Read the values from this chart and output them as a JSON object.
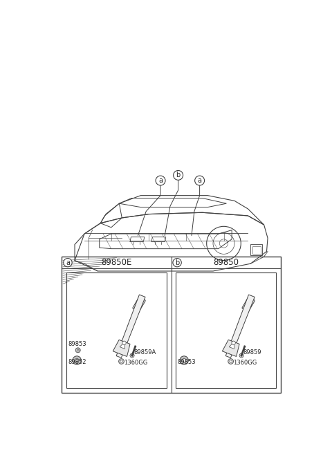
{
  "bg_color": "#ffffff",
  "line_color": "#404040",
  "text_color": "#222222",
  "fig_w": 4.8,
  "fig_h": 6.55,
  "dpi": 100,
  "panel_a_part": "89850E",
  "panel_b_part": "89850",
  "panel_a_label": "a",
  "panel_b_label": "b",
  "panel_a_parts": [
    "89853",
    "89852",
    "1360GG",
    "89859A"
  ],
  "panel_b_parts": [
    "89853",
    "1360GG",
    "89859"
  ],
  "callout_labels": [
    "a",
    "b",
    "a"
  ]
}
